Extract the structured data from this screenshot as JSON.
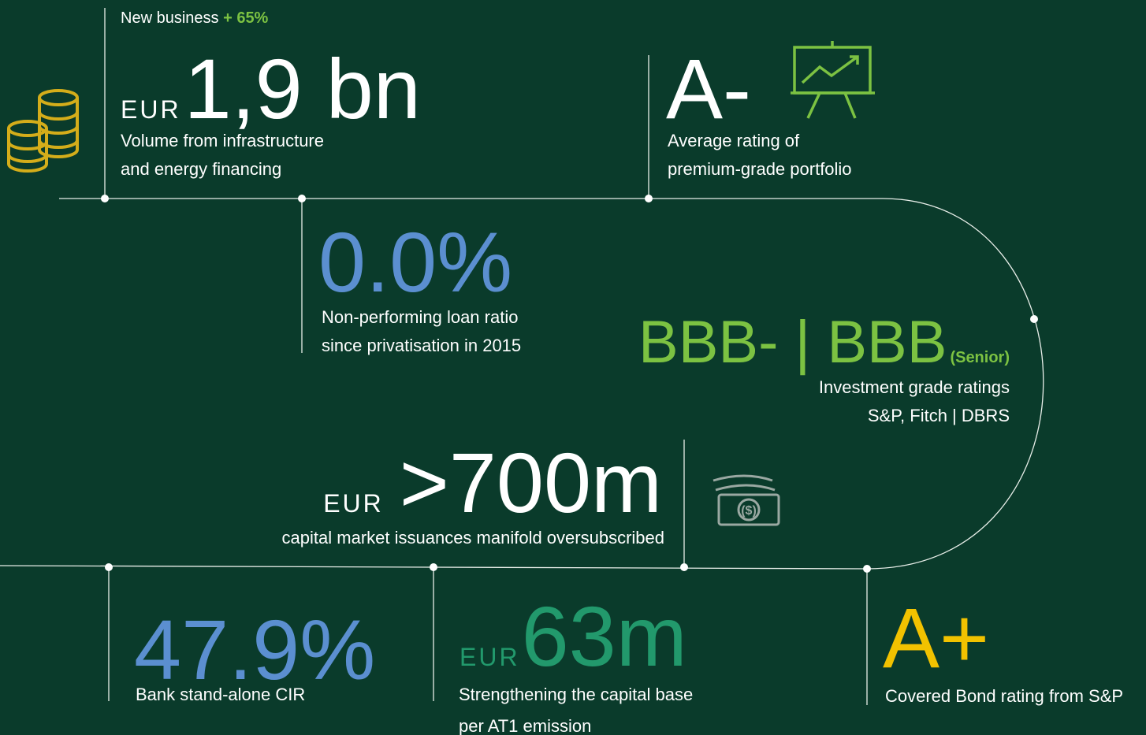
{
  "items": [
    {
      "header": "New business",
      "header_highlight": "+ 65%",
      "prefix": "EUR",
      "value": "1,9 bn",
      "lines": [
        "Volume from infrastructure",
        "and energy financing"
      ]
    },
    {
      "value": "A-",
      "lines": [
        "Average rating of",
        "premium-grade portfolio"
      ]
    },
    {
      "value": "0.0%",
      "lines": [
        "Non-performing loan ratio",
        "since privatisation in 2015"
      ]
    },
    {
      "value": "BBB- | BBB",
      "suffix": "(Senior)",
      "lines": [
        "Investment grade ratings",
        "S&P, Fitch | DBRS"
      ]
    },
    {
      "prefix": "EUR",
      "value": ">700m",
      "lines": [
        "capital market issuances manifold oversubscribed"
      ]
    },
    {
      "value": "47.9%",
      "lines": [
        "Bank stand-alone CIR"
      ]
    },
    {
      "prefix": "EUR",
      "value": "63m",
      "lines": [
        "Strengthening the capital base",
        "per AT1 emission"
      ]
    },
    {
      "value": "A+",
      "lines": [
        "Covered Bond rating from S&P"
      ]
    }
  ]
}
